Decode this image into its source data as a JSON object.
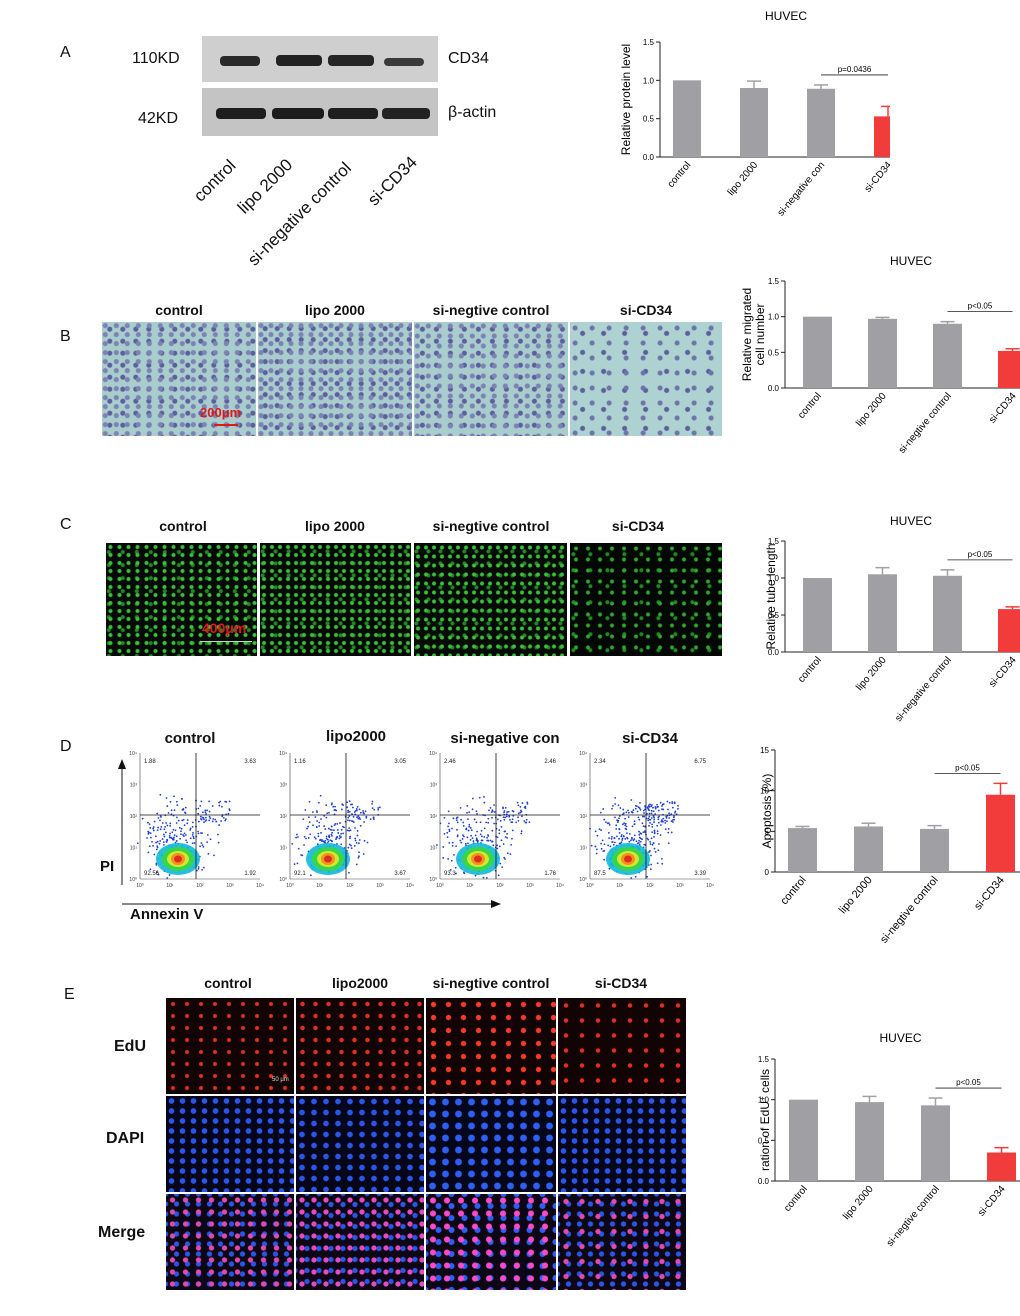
{
  "colors": {
    "gray_bar": "#a0a0a4",
    "red_bar": "#f23c3c",
    "blot_bg": "#c9c9c9"
  },
  "panel_a": {
    "letter": "A",
    "blot_labels": {
      "band1_kd": "110KD",
      "band2_kd": "42KD",
      "band1_name": "CD34",
      "band2_name": "β-actin"
    },
    "lane_labels": [
      "control",
      "lipo 2000",
      "si-negative control",
      "si-CD34"
    ]
  },
  "panel_b": {
    "letter": "B",
    "image_labels": [
      "control",
      "lipo 2000",
      "si-negtive control",
      "si-CD34"
    ],
    "scale_bar": "200μm"
  },
  "panel_c": {
    "letter": "C",
    "image_labels": [
      "control",
      "lipo 2000",
      "si-negtive control",
      "si-CD34"
    ],
    "scale_bar": "400μm"
  },
  "panel_d": {
    "letter": "D",
    "plot_labels": [
      "control",
      "lipo2000",
      "si-negative con",
      "si-CD34"
    ],
    "y_axis": "PI",
    "x_axis": "Annexin V",
    "quadrants": [
      {
        "ul": "1.88",
        "ur": "3.63",
        "ll": "92.56",
        "lr": "1.92"
      },
      {
        "ul": "1.16",
        "ur": "3.05",
        "ll": "92.1",
        "lr": "3.67"
      },
      {
        "ul": "2.46",
        "ur": "2.46",
        "ll": "93.3",
        "lr": "1.76"
      },
      {
        "ul": "2.34",
        "ur": "6.75",
        "ll": "87.5",
        "lr": "3.39"
      }
    ]
  },
  "panel_e": {
    "letter": "E",
    "column_labels": [
      "control",
      "lipo2000",
      "si-negtive control",
      "si-CD34"
    ],
    "row_labels": [
      "EdU",
      "DAPI",
      "Merge"
    ],
    "scale_bar": "50 μm"
  },
  "chart_data": [
    {
      "type": "bar",
      "title": "HUVEC",
      "ylabel": "Relative protein level",
      "categories": [
        "control",
        "lipo 2000",
        "si-negative con",
        "si-CD34"
      ],
      "values": [
        1.0,
        0.9,
        0.89,
        0.53
      ],
      "errors": [
        0.0,
        0.09,
        0.05,
        0.13
      ],
      "ylim": [
        0,
        1.5
      ],
      "yticks": [
        "0.0",
        "0.5",
        "1.0",
        "1.5"
      ],
      "annotation": "p=0.0436"
    },
    {
      "type": "bar",
      "title": "HUVEC",
      "ylabel": "Relative migrated cell number",
      "ylabel_lines": [
        "Relative migrated",
        "cell number"
      ],
      "categories": [
        "control",
        "lipo 2000",
        "si-negtive control",
        "si-CD34"
      ],
      "values": [
        1.0,
        0.97,
        0.9,
        0.52
      ],
      "errors": [
        0.0,
        0.02,
        0.03,
        0.03
      ],
      "ylim": [
        0,
        1.5
      ],
      "yticks": [
        "0.0",
        "0.5",
        "1.0",
        "1.5"
      ],
      "annotation": "p<0.05"
    },
    {
      "type": "bar",
      "title": "HUVEC",
      "ylabel": "Relative tube length",
      "categories": [
        "control",
        "lipo 2000",
        "si-negative control",
        "si-CD34"
      ],
      "values": [
        1.0,
        1.05,
        1.03,
        0.58
      ],
      "errors": [
        0.0,
        0.09,
        0.08,
        0.03
      ],
      "ylim": [
        0,
        1.5
      ],
      "yticks": [
        "0.0",
        "0.5",
        "1.0",
        "1.5"
      ],
      "annotation": "p<0.05"
    },
    {
      "type": "bar",
      "title": "",
      "ylabel": "Apoptosis (%)",
      "categories": [
        "control",
        "lipo 2000",
        "si-negtive control",
        "si-CD34"
      ],
      "values": [
        5.4,
        5.6,
        5.3,
        9.5
      ],
      "errors": [
        0.2,
        0.4,
        0.4,
        1.4
      ],
      "ylim": [
        0,
        15
      ],
      "yticks": [
        "0",
        "5",
        "10",
        "15"
      ],
      "annotation": "p<0.05"
    },
    {
      "type": "bar",
      "title": "HUVEC",
      "ylabel": "ration of EdU",
      "ylabel_sup": "+",
      "ylabel_tail": " cells",
      "categories": [
        "control",
        "lipo 2000",
        "si-negtive control",
        "si-CD34"
      ],
      "values": [
        1.0,
        0.97,
        0.93,
        0.35
      ],
      "errors": [
        0.0,
        0.07,
        0.09,
        0.06
      ],
      "ylim": [
        0,
        1.5
      ],
      "yticks": [
        "0.0",
        "0.5",
        "1.0",
        "1.5"
      ],
      "annotation": "p<0.05"
    }
  ]
}
